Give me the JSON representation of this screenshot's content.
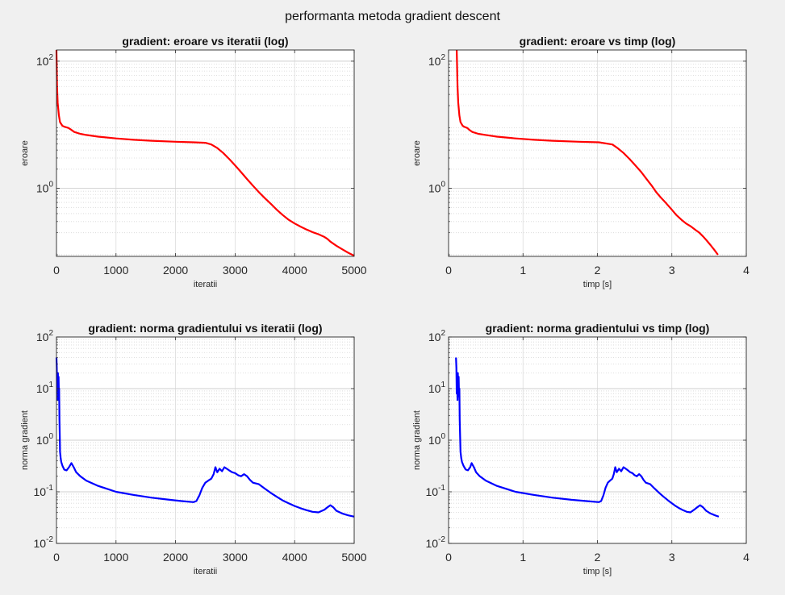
{
  "figure": {
    "title": "performanta metoda gradient descent"
  },
  "chart_data": [
    {
      "type": "line",
      "title": "gradient: eroare vs iteratii (log)",
      "xlabel": "iteratii",
      "ylabel": "eroare",
      "xscale": "linear",
      "yscale": "log",
      "xlim": [
        0,
        5000
      ],
      "ylim": [
        0.085,
        150
      ],
      "xticks": [
        0,
        1000,
        2000,
        3000,
        4000,
        5000
      ],
      "xtick_labels": [
        "0",
        "1000",
        "2000",
        "3000",
        "4000",
        "5000"
      ],
      "yticks": [
        1,
        100
      ],
      "ytick_labels": [
        {
          "base": "10",
          "exp": "0"
        },
        {
          "base": "10",
          "exp": "2"
        }
      ],
      "grid": true,
      "minor_grid": true,
      "series": [
        {
          "color": "#ff0000",
          "x": [
            0,
            10,
            20,
            40,
            60,
            100,
            150,
            200,
            250,
            300,
            400,
            500,
            700,
            1000,
            1300,
            1600,
            2000,
            2300,
            2500,
            2600,
            2700,
            2800,
            2900,
            3000,
            3100,
            3200,
            3300,
            3400,
            3500,
            3600,
            3700,
            3800,
            3900,
            4000,
            4100,
            4200,
            4300,
            4400,
            4500,
            4550,
            4600,
            4700,
            4800,
            4900,
            5000
          ],
          "y": [
            150,
            40,
            22,
            14,
            11,
            9.6,
            9.2,
            8.9,
            8.3,
            7.7,
            7.2,
            6.9,
            6.5,
            6.1,
            5.8,
            5.6,
            5.4,
            5.3,
            5.2,
            4.9,
            4.3,
            3.6,
            2.9,
            2.3,
            1.8,
            1.4,
            1.1,
            0.87,
            0.7,
            0.57,
            0.46,
            0.38,
            0.32,
            0.28,
            0.25,
            0.225,
            0.205,
            0.19,
            0.172,
            0.16,
            0.145,
            0.125,
            0.11,
            0.097,
            0.087
          ]
        }
      ]
    },
    {
      "type": "line",
      "title": "gradient: eroare vs timp (log)",
      "xlabel": "timp [s]",
      "ylabel": "eroare",
      "xscale": "linear",
      "yscale": "log",
      "xlim": [
        0,
        4
      ],
      "ylim": [
        0.085,
        150
      ],
      "xticks": [
        0,
        1,
        2,
        3,
        4
      ],
      "xtick_labels": [
        "0",
        "1",
        "2",
        "3",
        "4"
      ],
      "yticks": [
        1,
        100
      ],
      "ytick_labels": [
        {
          "base": "10",
          "exp": "0"
        },
        {
          "base": "10",
          "exp": "2"
        }
      ],
      "grid": true,
      "minor_grid": true,
      "series": [
        {
          "color": "#ff0000",
          "x": [
            0.11,
            0.12,
            0.13,
            0.145,
            0.16,
            0.19,
            0.22,
            0.25,
            0.28,
            0.32,
            0.4,
            0.5,
            0.65,
            0.9,
            1.15,
            1.4,
            1.75,
            2.02,
            2.2,
            2.27,
            2.35,
            2.43,
            2.51,
            2.59,
            2.66,
            2.73,
            2.79,
            2.86,
            2.93,
            3.0,
            3.06,
            3.13,
            3.19,
            3.26,
            3.32,
            3.37,
            3.42,
            3.47,
            3.52,
            3.57,
            3.62
          ],
          "y": [
            150,
            40,
            22,
            14,
            11,
            9.6,
            9.2,
            8.9,
            8.3,
            7.7,
            7.2,
            6.9,
            6.5,
            6.1,
            5.8,
            5.6,
            5.4,
            5.3,
            4.9,
            4.3,
            3.6,
            2.9,
            2.3,
            1.8,
            1.4,
            1.1,
            0.87,
            0.7,
            0.57,
            0.46,
            0.38,
            0.32,
            0.28,
            0.25,
            0.22,
            0.2,
            0.175,
            0.15,
            0.128,
            0.108,
            0.09
          ]
        }
      ]
    },
    {
      "type": "line",
      "title": "gradient: norma gradientului vs iteratii (log)",
      "xlabel": "iteratii",
      "ylabel": "norma gradient",
      "xscale": "linear",
      "yscale": "log",
      "xlim": [
        0,
        5000
      ],
      "ylim": [
        0.01,
        100
      ],
      "xticks": [
        0,
        1000,
        2000,
        3000,
        4000,
        5000
      ],
      "xtick_labels": [
        "0",
        "1000",
        "2000",
        "3000",
        "4000",
        "5000"
      ],
      "yticks": [
        0.01,
        0.1,
        1,
        10,
        100
      ],
      "ytick_labels": [
        {
          "base": "10",
          "exp": "-2"
        },
        {
          "base": "10",
          "exp": "-1"
        },
        {
          "base": "10",
          "exp": "0"
        },
        {
          "base": "10",
          "exp": "1"
        },
        {
          "base": "10",
          "exp": "2"
        }
      ],
      "grid": true,
      "minor_grid": true,
      "series": [
        {
          "color": "#0000ff",
          "x": [
            0,
            5,
            10,
            15,
            20,
            25,
            30,
            35,
            40,
            45,
            50,
            55,
            60,
            70,
            80,
            100,
            130,
            170,
            210,
            250,
            290,
            330,
            400,
            500,
            700,
            1000,
            1300,
            1600,
            1900,
            2100,
            2300,
            2350,
            2400,
            2450,
            2500,
            2550,
            2600,
            2640,
            2670,
            2700,
            2740,
            2780,
            2820,
            2860,
            2900,
            2950,
            3000,
            3050,
            3100,
            3150,
            3200,
            3250,
            3300,
            3400,
            3500,
            3600,
            3700,
            3800,
            3900,
            4000,
            4100,
            4200,
            4300,
            4400,
            4500,
            4550,
            4600,
            4650,
            4700,
            4800,
            4900,
            5000
          ],
          "y": [
            40,
            25,
            8,
            18,
            6,
            20,
            7,
            17,
            8,
            10,
            2.5,
            1.2,
            0.6,
            0.45,
            0.38,
            0.32,
            0.27,
            0.26,
            0.3,
            0.36,
            0.3,
            0.24,
            0.2,
            0.165,
            0.13,
            0.1,
            0.087,
            0.077,
            0.07,
            0.066,
            0.063,
            0.066,
            0.085,
            0.12,
            0.15,
            0.165,
            0.18,
            0.22,
            0.3,
            0.24,
            0.28,
            0.25,
            0.3,
            0.28,
            0.26,
            0.24,
            0.23,
            0.21,
            0.2,
            0.22,
            0.2,
            0.17,
            0.15,
            0.14,
            0.115,
            0.095,
            0.08,
            0.068,
            0.06,
            0.053,
            0.048,
            0.044,
            0.041,
            0.04,
            0.045,
            0.05,
            0.055,
            0.05,
            0.043,
            0.038,
            0.035,
            0.033
          ]
        }
      ]
    },
    {
      "type": "line",
      "title": "gradient: norma gradientului vs timp (log)",
      "xlabel": "timp [s]",
      "ylabel": "norma gradient",
      "xscale": "linear",
      "yscale": "log",
      "xlim": [
        0,
        4
      ],
      "ylim": [
        0.01,
        100
      ],
      "xticks": [
        0,
        1,
        2,
        3,
        4
      ],
      "xtick_labels": [
        "0",
        "1",
        "2",
        "3",
        "4"
      ],
      "yticks": [
        0.01,
        0.1,
        1,
        10,
        100
      ],
      "ytick_labels": [
        {
          "base": "10",
          "exp": "-2"
        },
        {
          "base": "10",
          "exp": "-1"
        },
        {
          "base": "10",
          "exp": "0"
        },
        {
          "base": "10",
          "exp": "1"
        },
        {
          "base": "10",
          "exp": "2"
        }
      ],
      "grid": true,
      "minor_grid": true,
      "series": [
        {
          "color": "#0000ff",
          "x": [
            0.1,
            0.105,
            0.11,
            0.115,
            0.12,
            0.125,
            0.13,
            0.135,
            0.14,
            0.145,
            0.15,
            0.155,
            0.16,
            0.17,
            0.18,
            0.2,
            0.23,
            0.26,
            0.29,
            0.31,
            0.34,
            0.37,
            0.42,
            0.5,
            0.65,
            0.9,
            1.15,
            1.4,
            1.65,
            1.85,
            2.02,
            2.05,
            2.08,
            2.11,
            2.14,
            2.17,
            2.2,
            2.22,
            2.24,
            2.26,
            2.29,
            2.32,
            2.35,
            2.38,
            2.41,
            2.44,
            2.47,
            2.5,
            2.53,
            2.56,
            2.59,
            2.62,
            2.65,
            2.71,
            2.77,
            2.83,
            2.89,
            2.95,
            3.0,
            3.05,
            3.1,
            3.15,
            3.2,
            3.25,
            3.3,
            3.34,
            3.38,
            3.42,
            3.46,
            3.52,
            3.58,
            3.63
          ],
          "y": [
            40,
            25,
            8,
            18,
            6,
            20,
            7,
            17,
            8,
            10,
            2.5,
            1.2,
            0.6,
            0.45,
            0.38,
            0.32,
            0.27,
            0.26,
            0.3,
            0.36,
            0.3,
            0.24,
            0.2,
            0.165,
            0.13,
            0.1,
            0.087,
            0.077,
            0.07,
            0.066,
            0.063,
            0.066,
            0.085,
            0.12,
            0.15,
            0.165,
            0.18,
            0.22,
            0.3,
            0.24,
            0.28,
            0.25,
            0.3,
            0.28,
            0.26,
            0.24,
            0.23,
            0.21,
            0.2,
            0.22,
            0.2,
            0.17,
            0.15,
            0.14,
            0.115,
            0.095,
            0.08,
            0.068,
            0.06,
            0.053,
            0.048,
            0.044,
            0.041,
            0.04,
            0.045,
            0.05,
            0.055,
            0.05,
            0.043,
            0.038,
            0.035,
            0.033
          ]
        }
      ]
    }
  ]
}
